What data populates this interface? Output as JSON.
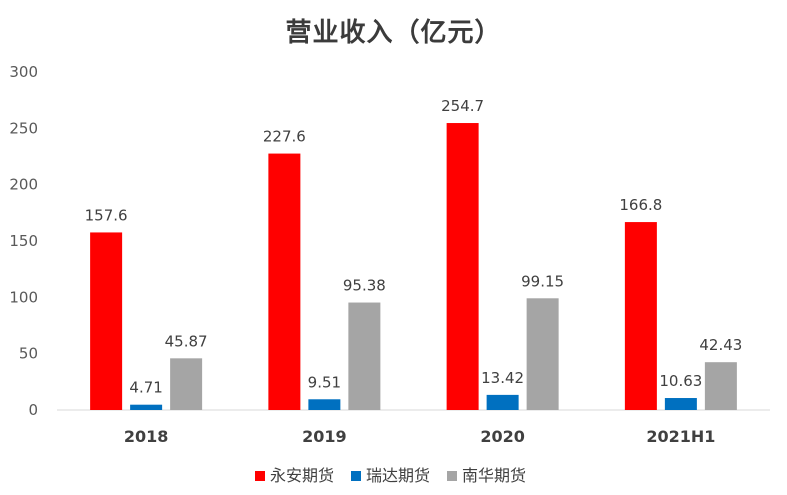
{
  "chart_data": {
    "type": "bar",
    "title": "营业收入（亿元）",
    "categories": [
      "2018",
      "2019",
      "2020",
      "2021H1"
    ],
    "series": [
      {
        "name": "永安期货",
        "color": "#FF0000",
        "values": [
          157.6,
          227.6,
          254.7,
          166.8
        ],
        "labels": [
          "157.6",
          "227.6",
          "254.7",
          "166.8"
        ]
      },
      {
        "name": "瑞达期货",
        "color": "#0070C0",
        "values": [
          4.71,
          9.51,
          13.42,
          10.63
        ],
        "labels": [
          "4.71",
          "9.51",
          "13.42",
          "10.63"
        ]
      },
      {
        "name": "南华期货",
        "color": "#A5A5A5",
        "values": [
          45.87,
          95.38,
          99.15,
          42.43
        ],
        "labels": [
          "45.87",
          "95.38",
          "99.15",
          "42.43"
        ]
      }
    ],
    "yticks": [
      0,
      50,
      100,
      150,
      200,
      250,
      300
    ],
    "ylim": [
      0,
      300
    ],
    "xlabel": "",
    "ylabel": "",
    "legend": "bottom",
    "grid": false
  }
}
